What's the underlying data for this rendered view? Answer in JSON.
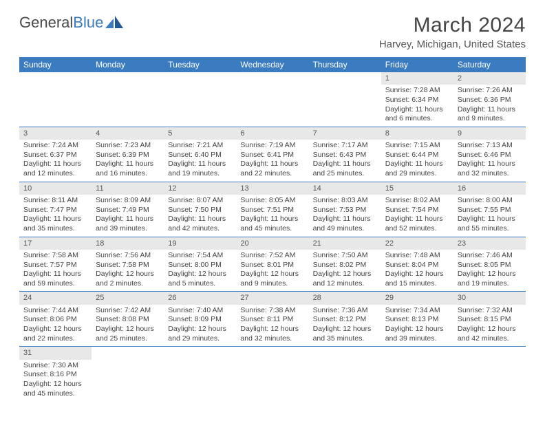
{
  "logo": {
    "text1": "General",
    "text2": "Blue"
  },
  "title": "March 2024",
  "location": "Harvey, Michigan, United States",
  "colors": {
    "header_bg": "#3b7bbf",
    "header_text": "#ffffff",
    "daynum_bg": "#e8e8e8",
    "border": "#3b7bbf",
    "text": "#444444",
    "background": "#ffffff"
  },
  "day_headers": [
    "Sunday",
    "Monday",
    "Tuesday",
    "Wednesday",
    "Thursday",
    "Friday",
    "Saturday"
  ],
  "weeks": [
    [
      null,
      null,
      null,
      null,
      null,
      {
        "n": "1",
        "sr": "Sunrise: 7:28 AM",
        "ss": "Sunset: 6:34 PM",
        "dl": "Daylight: 11 hours and 6 minutes."
      },
      {
        "n": "2",
        "sr": "Sunrise: 7:26 AM",
        "ss": "Sunset: 6:36 PM",
        "dl": "Daylight: 11 hours and 9 minutes."
      }
    ],
    [
      {
        "n": "3",
        "sr": "Sunrise: 7:24 AM",
        "ss": "Sunset: 6:37 PM",
        "dl": "Daylight: 11 hours and 12 minutes."
      },
      {
        "n": "4",
        "sr": "Sunrise: 7:23 AM",
        "ss": "Sunset: 6:39 PM",
        "dl": "Daylight: 11 hours and 16 minutes."
      },
      {
        "n": "5",
        "sr": "Sunrise: 7:21 AM",
        "ss": "Sunset: 6:40 PM",
        "dl": "Daylight: 11 hours and 19 minutes."
      },
      {
        "n": "6",
        "sr": "Sunrise: 7:19 AM",
        "ss": "Sunset: 6:41 PM",
        "dl": "Daylight: 11 hours and 22 minutes."
      },
      {
        "n": "7",
        "sr": "Sunrise: 7:17 AM",
        "ss": "Sunset: 6:43 PM",
        "dl": "Daylight: 11 hours and 25 minutes."
      },
      {
        "n": "8",
        "sr": "Sunrise: 7:15 AM",
        "ss": "Sunset: 6:44 PM",
        "dl": "Daylight: 11 hours and 29 minutes."
      },
      {
        "n": "9",
        "sr": "Sunrise: 7:13 AM",
        "ss": "Sunset: 6:46 PM",
        "dl": "Daylight: 11 hours and 32 minutes."
      }
    ],
    [
      {
        "n": "10",
        "sr": "Sunrise: 8:11 AM",
        "ss": "Sunset: 7:47 PM",
        "dl": "Daylight: 11 hours and 35 minutes."
      },
      {
        "n": "11",
        "sr": "Sunrise: 8:09 AM",
        "ss": "Sunset: 7:49 PM",
        "dl": "Daylight: 11 hours and 39 minutes."
      },
      {
        "n": "12",
        "sr": "Sunrise: 8:07 AM",
        "ss": "Sunset: 7:50 PM",
        "dl": "Daylight: 11 hours and 42 minutes."
      },
      {
        "n": "13",
        "sr": "Sunrise: 8:05 AM",
        "ss": "Sunset: 7:51 PM",
        "dl": "Daylight: 11 hours and 45 minutes."
      },
      {
        "n": "14",
        "sr": "Sunrise: 8:03 AM",
        "ss": "Sunset: 7:53 PM",
        "dl": "Daylight: 11 hours and 49 minutes."
      },
      {
        "n": "15",
        "sr": "Sunrise: 8:02 AM",
        "ss": "Sunset: 7:54 PM",
        "dl": "Daylight: 11 hours and 52 minutes."
      },
      {
        "n": "16",
        "sr": "Sunrise: 8:00 AM",
        "ss": "Sunset: 7:55 PM",
        "dl": "Daylight: 11 hours and 55 minutes."
      }
    ],
    [
      {
        "n": "17",
        "sr": "Sunrise: 7:58 AM",
        "ss": "Sunset: 7:57 PM",
        "dl": "Daylight: 11 hours and 59 minutes."
      },
      {
        "n": "18",
        "sr": "Sunrise: 7:56 AM",
        "ss": "Sunset: 7:58 PM",
        "dl": "Daylight: 12 hours and 2 minutes."
      },
      {
        "n": "19",
        "sr": "Sunrise: 7:54 AM",
        "ss": "Sunset: 8:00 PM",
        "dl": "Daylight: 12 hours and 5 minutes."
      },
      {
        "n": "20",
        "sr": "Sunrise: 7:52 AM",
        "ss": "Sunset: 8:01 PM",
        "dl": "Daylight: 12 hours and 9 minutes."
      },
      {
        "n": "21",
        "sr": "Sunrise: 7:50 AM",
        "ss": "Sunset: 8:02 PM",
        "dl": "Daylight: 12 hours and 12 minutes."
      },
      {
        "n": "22",
        "sr": "Sunrise: 7:48 AM",
        "ss": "Sunset: 8:04 PM",
        "dl": "Daylight: 12 hours and 15 minutes."
      },
      {
        "n": "23",
        "sr": "Sunrise: 7:46 AM",
        "ss": "Sunset: 8:05 PM",
        "dl": "Daylight: 12 hours and 19 minutes."
      }
    ],
    [
      {
        "n": "24",
        "sr": "Sunrise: 7:44 AM",
        "ss": "Sunset: 8:06 PM",
        "dl": "Daylight: 12 hours and 22 minutes."
      },
      {
        "n": "25",
        "sr": "Sunrise: 7:42 AM",
        "ss": "Sunset: 8:08 PM",
        "dl": "Daylight: 12 hours and 25 minutes."
      },
      {
        "n": "26",
        "sr": "Sunrise: 7:40 AM",
        "ss": "Sunset: 8:09 PM",
        "dl": "Daylight: 12 hours and 29 minutes."
      },
      {
        "n": "27",
        "sr": "Sunrise: 7:38 AM",
        "ss": "Sunset: 8:11 PM",
        "dl": "Daylight: 12 hours and 32 minutes."
      },
      {
        "n": "28",
        "sr": "Sunrise: 7:36 AM",
        "ss": "Sunset: 8:12 PM",
        "dl": "Daylight: 12 hours and 35 minutes."
      },
      {
        "n": "29",
        "sr": "Sunrise: 7:34 AM",
        "ss": "Sunset: 8:13 PM",
        "dl": "Daylight: 12 hours and 39 minutes."
      },
      {
        "n": "30",
        "sr": "Sunrise: 7:32 AM",
        "ss": "Sunset: 8:15 PM",
        "dl": "Daylight: 12 hours and 42 minutes."
      }
    ],
    [
      {
        "n": "31",
        "sr": "Sunrise: 7:30 AM",
        "ss": "Sunset: 8:16 PM",
        "dl": "Daylight: 12 hours and 45 minutes."
      },
      null,
      null,
      null,
      null,
      null,
      null
    ]
  ]
}
